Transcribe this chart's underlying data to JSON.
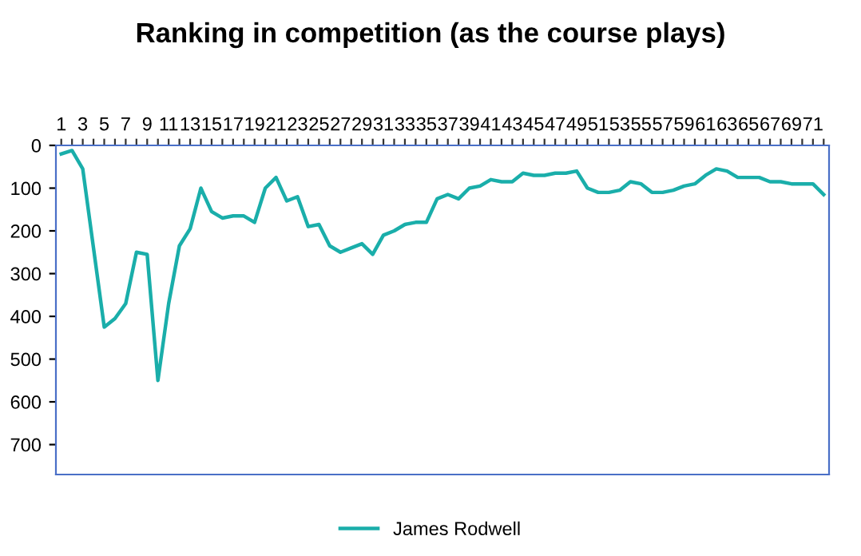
{
  "chart_data": {
    "type": "line",
    "title": "Ranking in competition (as the course plays)",
    "categories": [
      "1",
      null,
      "3",
      null,
      "5",
      null,
      "7",
      null,
      "9",
      null,
      "11",
      null,
      "13",
      null,
      "15",
      null,
      "17",
      null,
      "19",
      null,
      "21",
      null,
      "23",
      null,
      "25",
      null,
      "27",
      null,
      "29",
      null,
      "31",
      null,
      "33",
      null,
      "35",
      null,
      "37",
      null,
      "39",
      null,
      "41",
      null,
      "43",
      null,
      "45",
      null,
      "47",
      null,
      "49",
      null,
      "51",
      null,
      "53",
      null,
      "55",
      null,
      "57",
      null,
      "59",
      null,
      "61",
      null,
      "63",
      null,
      "65",
      null,
      "67",
      null,
      "69",
      null,
      "71",
      null
    ],
    "series": [
      {
        "name": "James Rodwell",
        "color": "#1aaeaa",
        "values": [
          20,
          12,
          55,
          240,
          425,
          405,
          370,
          250,
          255,
          550,
          370,
          235,
          195,
          100,
          155,
          170,
          165,
          165,
          180,
          100,
          75,
          130,
          120,
          190,
          185,
          235,
          250,
          240,
          230,
          255,
          210,
          200,
          185,
          180,
          180,
          125,
          115,
          125,
          100,
          95,
          80,
          85,
          85,
          65,
          70,
          70,
          65,
          65,
          60,
          100,
          110,
          110,
          105,
          85,
          90,
          110,
          110,
          105,
          95,
          90,
          70,
          55,
          60,
          75,
          75,
          75,
          85,
          85,
          90,
          90,
          90,
          115
        ]
      }
    ],
    "ylim": [
      770,
      0
    ],
    "yticks": [
      0,
      100,
      200,
      300,
      400,
      500,
      600,
      700
    ],
    "grid": false,
    "legend": "bottom",
    "marker": "none",
    "line_style": "solid"
  }
}
